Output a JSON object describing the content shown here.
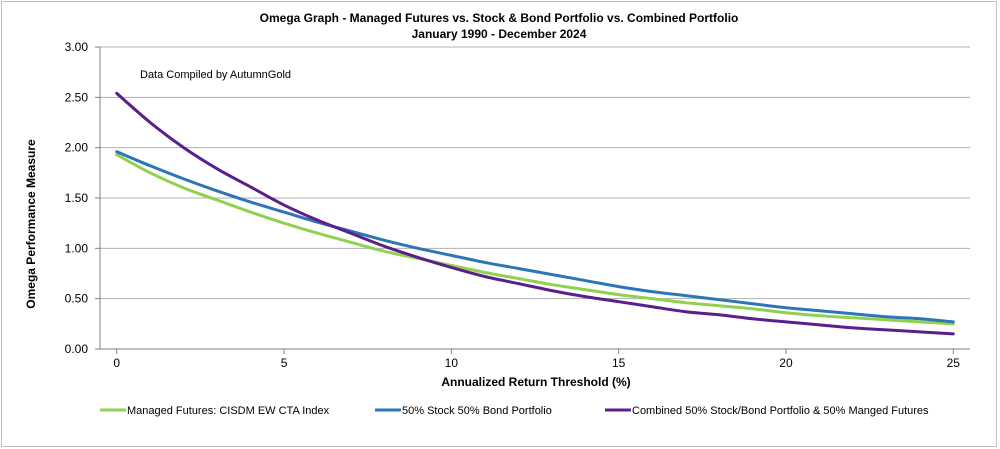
{
  "chart_data": {
    "type": "line",
    "title": "Omega Graph - Managed Futures vs. Stock & Bond Portfolio vs. Combined Portfolio",
    "subtitle": "January 1990 - December 2024",
    "annotation": "Data Compiled by AutumnGold",
    "xlabel": "Annualized Return Threshold (%)",
    "ylabel": "Omega Performance Measure",
    "xlim": [
      -0.5,
      25.5
    ],
    "ylim": [
      0,
      3
    ],
    "x_ticks": [
      "0",
      "5",
      "10",
      "15",
      "20",
      "25"
    ],
    "y_ticks": [
      "0.00",
      "0.50",
      "1.00",
      "1.50",
      "2.00",
      "2.50",
      "3.00"
    ],
    "grid": "horizontal",
    "legend_position": "bottom",
    "x": [
      0,
      1,
      2,
      3,
      4,
      5,
      6,
      7,
      8,
      9,
      10,
      11,
      12,
      13,
      14,
      15,
      16,
      17,
      18,
      19,
      20,
      21,
      22,
      23,
      24,
      25
    ],
    "series": [
      {
        "name": "Managed Futures: CISDM EW CTA Index",
        "color": "#92d050",
        "values": [
          1.93,
          1.75,
          1.6,
          1.48,
          1.36,
          1.25,
          1.15,
          1.06,
          0.97,
          0.9,
          0.83,
          0.76,
          0.7,
          0.64,
          0.59,
          0.54,
          0.5,
          0.46,
          0.43,
          0.4,
          0.36,
          0.33,
          0.31,
          0.29,
          0.27,
          0.25
        ]
      },
      {
        "name": "50% Stock 50% Bond Portfolio",
        "color": "#2e75b6",
        "values": [
          1.96,
          1.82,
          1.69,
          1.57,
          1.46,
          1.36,
          1.26,
          1.17,
          1.08,
          1.0,
          0.93,
          0.86,
          0.8,
          0.74,
          0.68,
          0.62,
          0.57,
          0.53,
          0.49,
          0.45,
          0.41,
          0.38,
          0.35,
          0.32,
          0.3,
          0.27
        ]
      },
      {
        "name": "Combined 50% Stock/Bond Portfolio & 50% Manged Futures",
        "color": "#5b1f8c",
        "values": [
          2.54,
          2.25,
          2.0,
          1.79,
          1.61,
          1.43,
          1.28,
          1.15,
          1.02,
          0.91,
          0.81,
          0.72,
          0.65,
          0.58,
          0.52,
          0.47,
          0.42,
          0.37,
          0.34,
          0.3,
          0.27,
          0.24,
          0.21,
          0.19,
          0.17,
          0.15
        ]
      }
    ]
  }
}
